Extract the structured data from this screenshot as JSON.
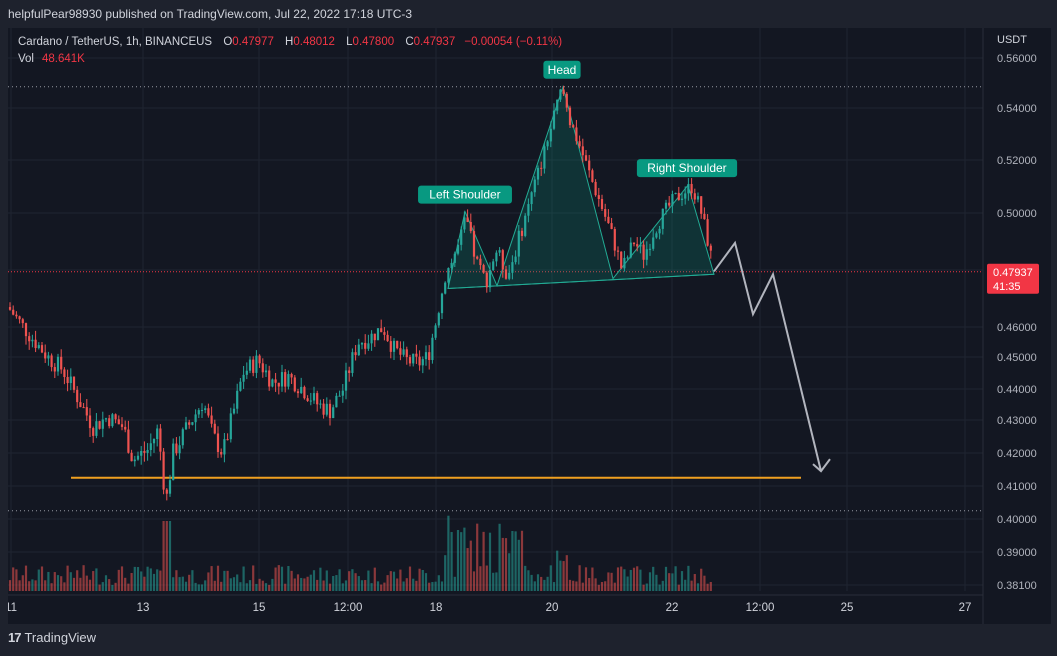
{
  "header": {
    "published": "helpfulPear98930 published on TradingView.com, Jul 22, 2022 17:18 UTC-3"
  },
  "legend": {
    "symbol": "Cardano / TetherUS, 1h, BINANCEUS",
    "o_label": "O",
    "o_value": "0.47977",
    "h_label": "H",
    "h_value": "0.48012",
    "l_label": "L",
    "l_value": "0.47800",
    "c_label": "C",
    "c_value": "0.47937",
    "change": "−0.00054 (−0.11%)",
    "vol_label": "Vol",
    "vol_value": "48.641K"
  },
  "axis": {
    "currency": "USDT",
    "price_ticks": [
      "0.56000",
      "0.54000",
      "0.52000",
      "0.50000",
      "0.46000",
      "0.45000",
      "0.44000",
      "0.43000",
      "0.42000",
      "0.41000",
      "0.40000",
      "0.39000",
      "0.38100"
    ],
    "time_ticks": [
      "11",
      "13",
      "15",
      "12:00",
      "18",
      "20",
      "22",
      "12:00",
      "25",
      "27"
    ]
  },
  "last_price": {
    "value": "0.47937",
    "countdown": "41:35"
  },
  "annotations": {
    "head": "Head",
    "left_shoulder": "Left Shoulder",
    "right_shoulder": "Right Shoulder"
  },
  "colors": {
    "up": "#26a69a",
    "down": "#ef5350",
    "support": "#f0a020",
    "label_bg": "#089981",
    "projection": "#b2b5be",
    "last_price": "#f23645"
  },
  "footer": {
    "brand": "TradingView",
    "logo": "17"
  },
  "chart_data": {
    "type": "candlestick",
    "symbol": "Cardano / TetherUS, 1h, BINANCEUS",
    "ohlc_last": {
      "open": 0.47977,
      "high": 0.48012,
      "low": 0.478,
      "close": 0.47937,
      "change": -0.00054,
      "change_pct": -0.11
    },
    "volume_last": "48.641K",
    "y_axis_ticks": [
      0.381,
      0.39,
      0.4,
      0.41,
      0.42,
      0.43,
      0.44,
      0.45,
      0.46,
      0.5,
      0.52,
      0.54,
      0.56
    ],
    "x_axis_ticks": [
      "11",
      "13",
      "15",
      "12:00",
      "18",
      "20",
      "22",
      "12:00",
      "25",
      "27"
    ],
    "price_path": [
      [
        0,
        0.467
      ],
      [
        20,
        0.458
      ],
      [
        40,
        0.45
      ],
      [
        55,
        0.446
      ],
      [
        70,
        0.437
      ],
      [
        85,
        0.428
      ],
      [
        100,
        0.431
      ],
      [
        115,
        0.428
      ],
      [
        125,
        0.418
      ],
      [
        140,
        0.421
      ],
      [
        150,
        0.427
      ],
      [
        158,
        0.405
      ],
      [
        165,
        0.42
      ],
      [
        180,
        0.428
      ],
      [
        195,
        0.436
      ],
      [
        205,
        0.425
      ],
      [
        215,
        0.42
      ],
      [
        225,
        0.432
      ],
      [
        235,
        0.445
      ],
      [
        250,
        0.449
      ],
      [
        265,
        0.442
      ],
      [
        280,
        0.444
      ],
      [
        295,
        0.44
      ],
      [
        310,
        0.435
      ],
      [
        322,
        0.433
      ],
      [
        335,
        0.44
      ],
      [
        350,
        0.455
      ],
      [
        360,
        0.456
      ],
      [
        375,
        0.46
      ],
      [
        385,
        0.453
      ],
      [
        398,
        0.449
      ],
      [
        410,
        0.448
      ],
      [
        420,
        0.45
      ],
      [
        428,
        0.462
      ],
      [
        437,
        0.478
      ],
      [
        450,
        0.488
      ],
      [
        458,
        0.498
      ],
      [
        468,
        0.483
      ],
      [
        478,
        0.476
      ],
      [
        488,
        0.487
      ],
      [
        500,
        0.478
      ],
      [
        510,
        0.49
      ],
      [
        520,
        0.502
      ],
      [
        530,
        0.515
      ],
      [
        540,
        0.528
      ],
      [
        548,
        0.54
      ],
      [
        554,
        0.548
      ],
      [
        562,
        0.535
      ],
      [
        572,
        0.525
      ],
      [
        584,
        0.512
      ],
      [
        596,
        0.5
      ],
      [
        606,
        0.49
      ],
      [
        614,
        0.48
      ],
      [
        626,
        0.49
      ],
      [
        636,
        0.485
      ],
      [
        646,
        0.494
      ],
      [
        656,
        0.5
      ],
      [
        666,
        0.505
      ],
      [
        676,
        0.508
      ],
      [
        684,
        0.51
      ],
      [
        692,
        0.502
      ],
      [
        700,
        0.49
      ],
      [
        706,
        0.479
      ]
    ],
    "support_level": 0.4125,
    "horizontal_dotted_levels": [
      0.5485,
      0.4025
    ],
    "last_price_line": 0.47937,
    "head_and_shoulders": {
      "left_shoulder_peak": 0.5005,
      "head_peak": 0.5485,
      "right_shoulder_peak": 0.5105,
      "neckline_start": 0.4735,
      "neckline_end": 0.4785
    },
    "projection_path": [
      0.4795,
      0.4895,
      0.4645,
      0.4785,
      0.4145
    ]
  }
}
